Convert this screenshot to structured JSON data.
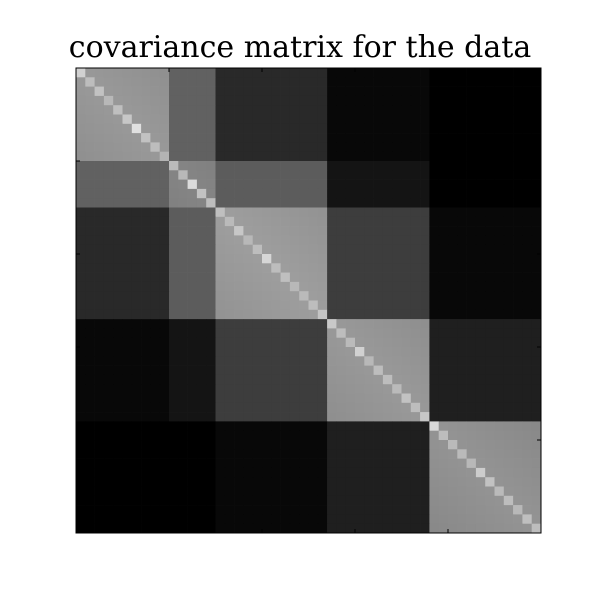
{
  "chart_data": {
    "type": "heatmap",
    "title": "covariance matrix for the data",
    "xlabel": "",
    "ylabel": "",
    "colormap": "gray",
    "value_range": [
      0,
      1
    ],
    "size": 50,
    "grid": false,
    "diagonal": [
      0.82,
      0.74,
      0.76,
      0.72,
      0.75,
      0.78,
      0.88,
      0.76,
      0.74,
      0.7,
      0.73,
      0.72,
      0.86,
      0.76,
      0.74,
      0.75,
      0.73,
      0.78,
      0.72,
      0.74,
      0.84,
      0.74,
      0.75,
      0.72,
      0.73,
      0.74,
      0.77,
      0.79,
      0.74,
      0.73,
      0.82,
      0.72,
      0.74,
      0.74,
      0.73,
      0.76,
      0.74,
      0.78,
      0.85,
      0.74,
      0.73,
      0.73,
      0.72,
      0.8,
      0.76,
      0.73,
      0.74,
      0.72,
      0.75,
      0.74
    ],
    "clusters": [
      {
        "start": 0,
        "end": 9,
        "within": 0.6
      },
      {
        "start": 10,
        "end": 14,
        "within": 0.52
      },
      {
        "start": 15,
        "end": 26,
        "within": 0.62
      },
      {
        "start": 27,
        "end": 37,
        "within": 0.6
      },
      {
        "start": 38,
        "end": 49,
        "within": 0.58
      }
    ],
    "between": [
      [
        0.6,
        0.38,
        0.16,
        0.03,
        0.0
      ],
      [
        0.38,
        0.52,
        0.36,
        0.08,
        0.0
      ],
      [
        0.16,
        0.36,
        0.62,
        0.24,
        0.03
      ],
      [
        0.03,
        0.08,
        0.24,
        0.6,
        0.12
      ],
      [
        0.0,
        0.0,
        0.03,
        0.12,
        0.58
      ]
    ]
  },
  "colors": {
    "background": "#ffffff",
    "axes": "#000000"
  }
}
